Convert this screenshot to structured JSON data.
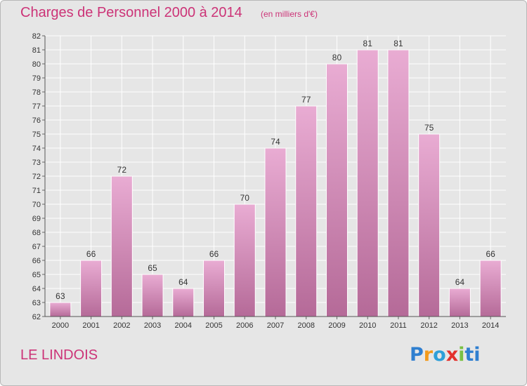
{
  "title": "Charges de Personnel 2000 à 2014",
  "subtitle": "(en milliers d'€)",
  "commune": "LE LINDOIS",
  "logo": {
    "letters": [
      "P",
      "r",
      "o",
      "x",
      "i",
      "ti"
    ]
  },
  "colors": {
    "title": "#cc3377",
    "bar_top": "#e9acd3",
    "bar_bottom": "#b56a98",
    "background": "#e6e6e6"
  },
  "chart_data": {
    "type": "bar",
    "categories": [
      "2000",
      "2001",
      "2002",
      "2003",
      "2004",
      "2005",
      "2006",
      "2007",
      "2008",
      "2009",
      "2010",
      "2011",
      "2012",
      "2013",
      "2014"
    ],
    "values": [
      63,
      66,
      72,
      65,
      64,
      66,
      70,
      74,
      77,
      80,
      81,
      81,
      75,
      64,
      66
    ],
    "ylim": [
      62,
      82
    ],
    "yticks": [
      62,
      63,
      64,
      65,
      66,
      67,
      68,
      69,
      70,
      71,
      72,
      73,
      74,
      75,
      76,
      77,
      78,
      79,
      80,
      81,
      82
    ],
    "grid": true,
    "title": "Charges de Personnel 2000 à 2014",
    "xlabel": "",
    "ylabel": ""
  }
}
